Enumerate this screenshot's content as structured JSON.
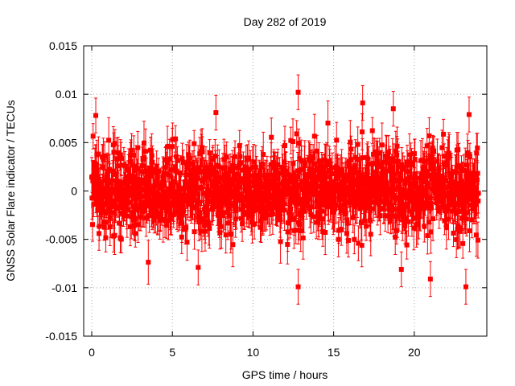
{
  "chart_data": {
    "type": "scatter",
    "title": "Day 282 of 2019",
    "xlabel": "GPS time / hours",
    "ylabel": "GNSS Solar Flare indicator / TECUs",
    "xlim": [
      -0.5,
      24.5
    ],
    "ylim": [
      -0.015,
      0.015
    ],
    "xticks": [
      0,
      5,
      10,
      15,
      20
    ],
    "xtick_labels": [
      "0",
      "5",
      "10",
      "15",
      "20"
    ],
    "yticks": [
      -0.015,
      -0.01,
      -0.005,
      0,
      0.005,
      0.01,
      0.015
    ],
    "ytick_labels": [
      "-0.015",
      "-0.01",
      "-0.005",
      "0",
      "0.005",
      "0.01",
      "0.015"
    ],
    "grid": true,
    "series": [
      {
        "name": "GNSS Solar Flare indicator",
        "color": "#ff0000",
        "marker": "square",
        "error_bars": true,
        "x_start": 0.0,
        "x_end": 23.99,
        "x_step": 0.0167,
        "value_spread": 0.005,
        "typical_error": 0.0018,
        "notable_points": [
          {
            "x": 0.25,
            "y": 0.0078
          },
          {
            "x": 7.7,
            "y": 0.0081
          },
          {
            "x": 12.8,
            "y": 0.0102
          },
          {
            "x": 16.8,
            "y": 0.0091
          },
          {
            "x": 18.7,
            "y": 0.0085
          },
          {
            "x": 23.4,
            "y": 0.0079
          },
          {
            "x": 6.6,
            "y": -0.0079
          },
          {
            "x": 12.8,
            "y": -0.0099
          },
          {
            "x": 19.2,
            "y": -0.0081
          },
          {
            "x": 21.0,
            "y": -0.0091
          },
          {
            "x": 23.2,
            "y": -0.0099
          }
        ]
      }
    ]
  }
}
